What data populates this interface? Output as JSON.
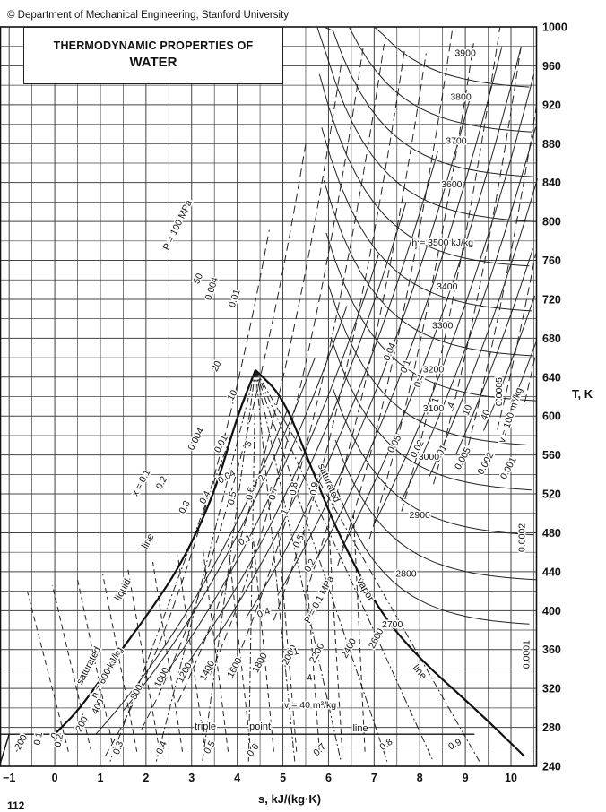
{
  "copyright": "© Department of Mechanical Engineering, Stanford University",
  "title": {
    "line1": "THERMODYNAMIC PROPERTIES OF",
    "line2": "WATER"
  },
  "page_number": "112",
  "chart_data": {
    "type": "line",
    "title": "THERMODYNAMIC PROPERTIES OF WATER",
    "xlabel": "s, kJ/(kg·K)",
    "ylabel": "T, K",
    "xlim": [
      -1.2,
      10.55
    ],
    "ylim": [
      240,
      1000
    ],
    "xticks": [
      -1,
      0,
      1,
      2,
      3,
      4,
      5,
      6,
      7,
      8,
      9,
      10
    ],
    "yticks": [
      240,
      280,
      320,
      360,
      400,
      440,
      480,
      520,
      560,
      600,
      640,
      680,
      720,
      760,
      800,
      840,
      880,
      920,
      960,
      1000
    ],
    "grid": true,
    "series": [
      {
        "name": "saturated liquid line",
        "x": [
          0.0,
          0.57,
          1.31,
          2.1,
          2.8,
          3.5,
          4.0,
          4.4
        ],
        "y": [
          273,
          300,
          350,
          400,
          450,
          520,
          600,
          647.3
        ]
      },
      {
        "name": "saturated vapor line",
        "x": [
          4.4,
          5.0,
          5.6,
          6.2,
          7.1,
          8.0,
          9.2,
          10.3
        ],
        "y": [
          647.3,
          620,
          550,
          480,
          400,
          350,
          300,
          250
        ]
      }
    ],
    "isobar_labels": [
      "P = 100 MPa",
      "50",
      "20",
      "10",
      "5",
      "2",
      "1",
      "0.5",
      "0.2",
      "P = 0.1 MPa",
      "0.05",
      "0.02",
      "0.01",
      "0.005",
      "0.002",
      "0.001",
      "0.0005",
      "0.0002",
      "0.0001"
    ],
    "isenthalp_labels": [
      "h = 3500 kJ/kg",
      "3900",
      "3800",
      "3700",
      "3600",
      "3400",
      "3300",
      "3200",
      "3100",
      "3000",
      "2900",
      "2800",
      "2700",
      "2600",
      "2400",
      "2200",
      "2000",
      "1800",
      "1600",
      "1400",
      "1200",
      "1000",
      "800",
      "h = 600 kJ/kg",
      "400",
      "200",
      "0",
      "-200"
    ],
    "volume_labels": [
      "v = 100 m³/kg",
      "40",
      "10",
      "4",
      "1",
      "0.4",
      "0.1",
      "0.04",
      "0.01",
      "0.004",
      "v = 40 m³/kg",
      "0.01",
      "0.004",
      "0.04",
      "0.1",
      "0.4",
      "1",
      "4"
    ],
    "quality_labels": [
      "x = 0.1",
      "0.2",
      "0.3",
      "0.4",
      "0.5",
      "0.6",
      "0.7",
      "0.8",
      "0.9",
      "0.1",
      "0.2",
      "0.3",
      "0.4",
      "0.5",
      "0.6",
      "0.7",
      "0.8",
      "0.9"
    ],
    "annotations": [
      "saturated",
      "liquid",
      "line",
      "saturated",
      "vapor",
      "line",
      "triple",
      "point",
      "line"
    ]
  }
}
